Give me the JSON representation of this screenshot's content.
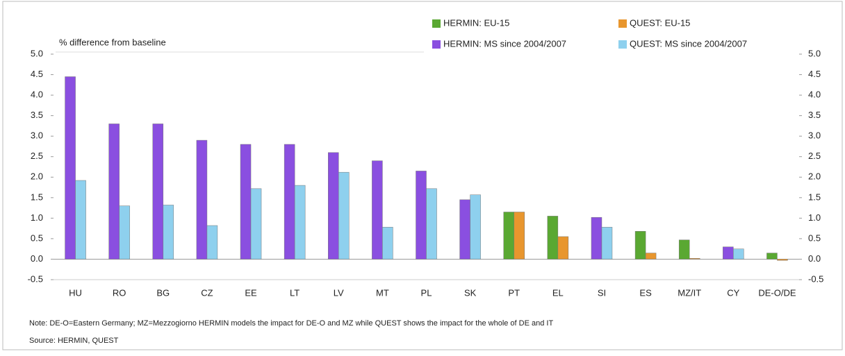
{
  "chart_data": {
    "type": "bar",
    "y_label": "% difference from baseline",
    "categories": [
      "HU",
      "RO",
      "BG",
      "CZ",
      "EE",
      "LT",
      "LV",
      "MT",
      "PL",
      "SK",
      "PT",
      "EL",
      "SI",
      "ES",
      "MZ/IT",
      "CY",
      "DE-O/DE"
    ],
    "series": [
      {
        "name": "HERMIN: EU-15",
        "color": "#5aa832",
        "values": [
          null,
          null,
          null,
          null,
          null,
          null,
          null,
          null,
          null,
          null,
          1.15,
          1.05,
          null,
          0.68,
          0.47,
          null,
          0.15
        ]
      },
      {
        "name": "QUEST: EU-15",
        "color": "#e8962e",
        "values": [
          null,
          null,
          null,
          null,
          null,
          null,
          null,
          null,
          null,
          null,
          1.15,
          0.55,
          null,
          0.15,
          0.02,
          null,
          -0.03
        ]
      },
      {
        "name": "HERMIN: MS since 2004/2007",
        "color": "#8a4fe0",
        "values": [
          4.45,
          3.3,
          3.3,
          2.9,
          2.8,
          2.8,
          2.6,
          2.4,
          2.15,
          1.45,
          null,
          null,
          1.02,
          null,
          null,
          0.3,
          null
        ]
      },
      {
        "name": "QUEST: MS since 2004/2007",
        "color": "#8ed0ee",
        "values": [
          1.92,
          1.3,
          1.32,
          0.82,
          1.72,
          1.8,
          2.12,
          0.78,
          1.72,
          1.57,
          null,
          null,
          0.78,
          null,
          null,
          0.25,
          null
        ]
      }
    ],
    "ylim": [
      -0.5,
      5.0
    ],
    "yticks": [
      -0.5,
      {
        "value": 0,
        "label": "0.0"
      },
      0.5,
      {
        "value": 1,
        "label": "1.0"
      },
      1.5,
      {
        "value": 2,
        "label": "2.0"
      },
      2.5,
      {
        "value": 3,
        "label": "3.0"
      },
      3.5,
      {
        "value": 4,
        "label": "4.0"
      },
      4.5,
      {
        "value": 5,
        "label": "5.0"
      }
    ],
    "note": "Note: DE-O=Eastern Germany; MZ=Mezzogiorno HERMIN models the impact for DE-O and MZ while QUEST shows the impact for the whole of DE and IT",
    "source": "Source: HERMIN, QUEST"
  }
}
